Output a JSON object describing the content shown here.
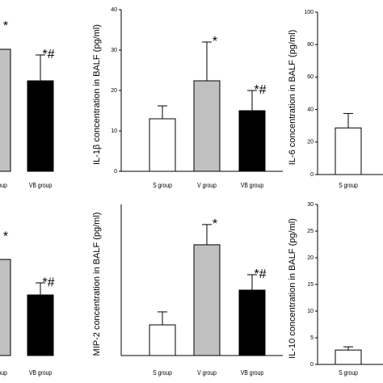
{
  "chart_data": [
    {
      "type": "bar",
      "categories": [
        "V group",
        "VB group"
      ],
      "values": [
        75.5,
        56
      ],
      "errors": [
        null,
        16
      ],
      "colors": [
        "#c0c0c0",
        "#000000"
      ],
      "ylim": [
        0,
        100
      ],
      "annotations": [
        {
          "text": "*",
          "category": "V group"
        },
        {
          "text": "*#",
          "category": "VB group"
        }
      ]
    },
    {
      "type": "bar",
      "y_label": "IL-1β concentration in BALF (pg/ml)",
      "categories": [
        "S group",
        "V group",
        "VB group"
      ],
      "values": [
        13,
        22.4,
        15
      ],
      "errors": [
        3.2,
        9.6,
        5
      ],
      "colors": [
        "#ffffff",
        "#c0c0c0",
        "#000000"
      ],
      "ylim": [
        0,
        40
      ],
      "yticks": [
        0,
        10,
        20,
        30,
        40
      ],
      "annotations": [
        {
          "text": "*",
          "category": "V group"
        },
        {
          "text": "*#",
          "category": "VB group"
        }
      ]
    },
    {
      "type": "bar",
      "y_label": "IL-6 concentration in BALF (pg/ml)",
      "categories": [
        "S group"
      ],
      "values": [
        28.7
      ],
      "errors": [
        8.9
      ],
      "colors": [
        "#ffffff"
      ],
      "ylim": [
        0,
        100
      ],
      "yticks": [
        0,
        20,
        40,
        60,
        80,
        100
      ]
    },
    {
      "type": "bar",
      "categories": [
        "V group",
        "VB group"
      ],
      "values": [
        63.6,
        40.1
      ],
      "errors": [
        null,
        8
      ],
      "colors": [
        "#c0c0c0",
        "#000000"
      ],
      "ylim": [
        0,
        100
      ],
      "annotations": [
        {
          "text": "*",
          "category": "V group"
        },
        {
          "text": "*#",
          "category": "VB group"
        }
      ]
    },
    {
      "type": "bar",
      "y_label": "MIP-2 concentration in BALF (pg/ml)",
      "categories": [
        "S group",
        "V group",
        "VB group"
      ],
      "values": [
        20.3,
        73.3,
        43.3
      ],
      "errors": [
        8.6,
        13.4,
        10.2
      ],
      "colors": [
        "#ffffff",
        "#c0c0c0",
        "#000000"
      ],
      "ylim": [
        0,
        100
      ],
      "annotations": [
        {
          "text": "*",
          "category": "V group"
        },
        {
          "text": "*#",
          "category": "VB group"
        }
      ]
    },
    {
      "type": "bar",
      "y_label": "IL-10 concentration in BALF (pg/ml)",
      "categories": [
        "S group"
      ],
      "values": [
        2.7
      ],
      "errors": [
        0.6
      ],
      "colors": [
        "#ffffff"
      ],
      "ylim": [
        0,
        30
      ],
      "yticks": [
        0,
        5,
        10,
        15,
        20,
        25,
        30
      ]
    }
  ]
}
